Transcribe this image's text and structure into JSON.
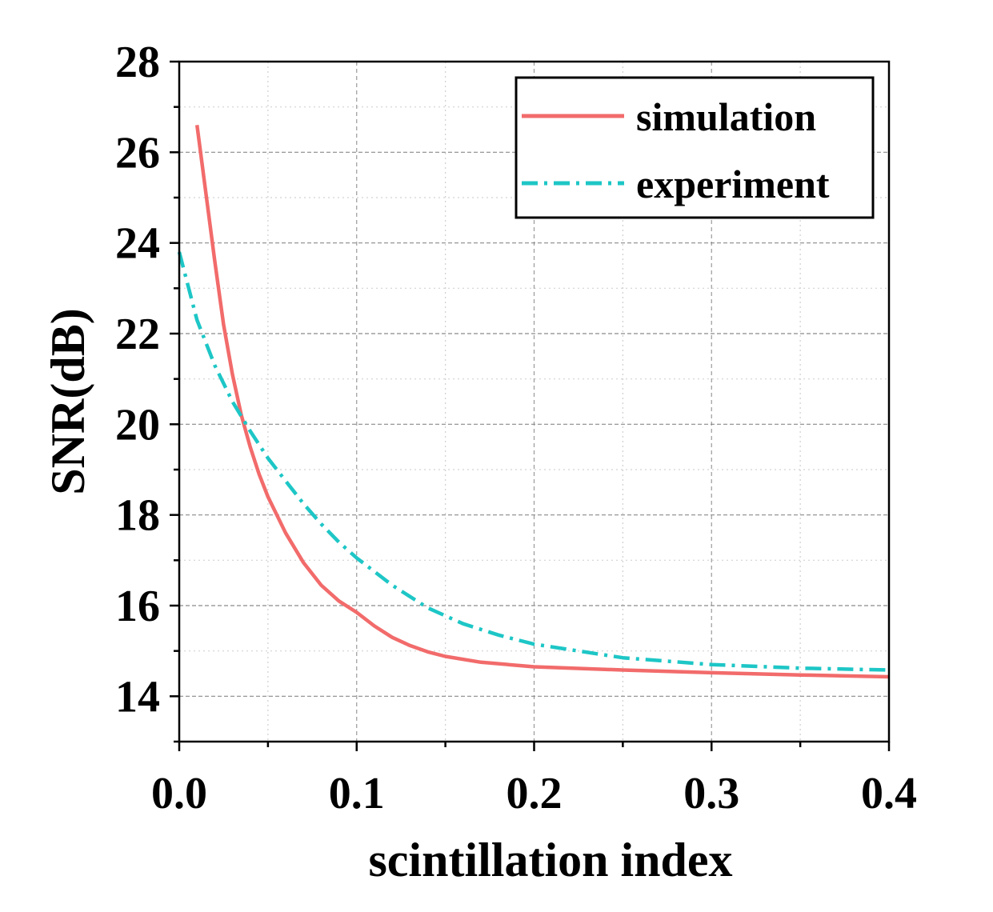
{
  "chart_data": {
    "type": "line",
    "xlabel": "scintillation index",
    "ylabel": "SNR(dB)",
    "xlim": [
      0,
      0.4
    ],
    "ylim": [
      13,
      28
    ],
    "xticks": [
      0,
      0.1,
      0.2,
      0.3,
      0.4
    ],
    "xtick_labels": [
      "0.0",
      "0.1",
      "0.2",
      "0.3",
      "0.4"
    ],
    "yticks": [
      14,
      16,
      18,
      20,
      22,
      24,
      26,
      28
    ],
    "ytick_labels": [
      "14",
      "16",
      "18",
      "20",
      "22",
      "24",
      "26",
      "28"
    ],
    "grid": true,
    "legend_position": "top-right",
    "series": [
      {
        "name": "simulation",
        "color": "#f26b6b",
        "style": "solid",
        "x": [
          0.01,
          0.015,
          0.02,
          0.025,
          0.03,
          0.035,
          0.04,
          0.045,
          0.05,
          0.06,
          0.07,
          0.08,
          0.09,
          0.1,
          0.11,
          0.12,
          0.13,
          0.14,
          0.15,
          0.17,
          0.2,
          0.25,
          0.3,
          0.35,
          0.4
        ],
        "y": [
          26.6,
          25.1,
          23.6,
          22.2,
          21.1,
          20.2,
          19.5,
          18.9,
          18.4,
          17.6,
          16.95,
          16.45,
          16.1,
          15.85,
          15.55,
          15.3,
          15.12,
          14.98,
          14.88,
          14.75,
          14.65,
          14.58,
          14.52,
          14.47,
          14.43
        ]
      },
      {
        "name": "experiment",
        "color": "#1ec6c6",
        "style": "dashdot",
        "x": [
          0.0,
          0.01,
          0.02,
          0.03,
          0.04,
          0.05,
          0.06,
          0.07,
          0.08,
          0.09,
          0.1,
          0.12,
          0.14,
          0.16,
          0.18,
          0.2,
          0.25,
          0.3,
          0.35,
          0.4
        ],
        "y": [
          23.8,
          22.3,
          21.3,
          20.5,
          19.85,
          19.25,
          18.75,
          18.25,
          17.8,
          17.4,
          17.05,
          16.45,
          15.95,
          15.6,
          15.35,
          15.15,
          14.85,
          14.7,
          14.62,
          14.58
        ]
      }
    ]
  }
}
